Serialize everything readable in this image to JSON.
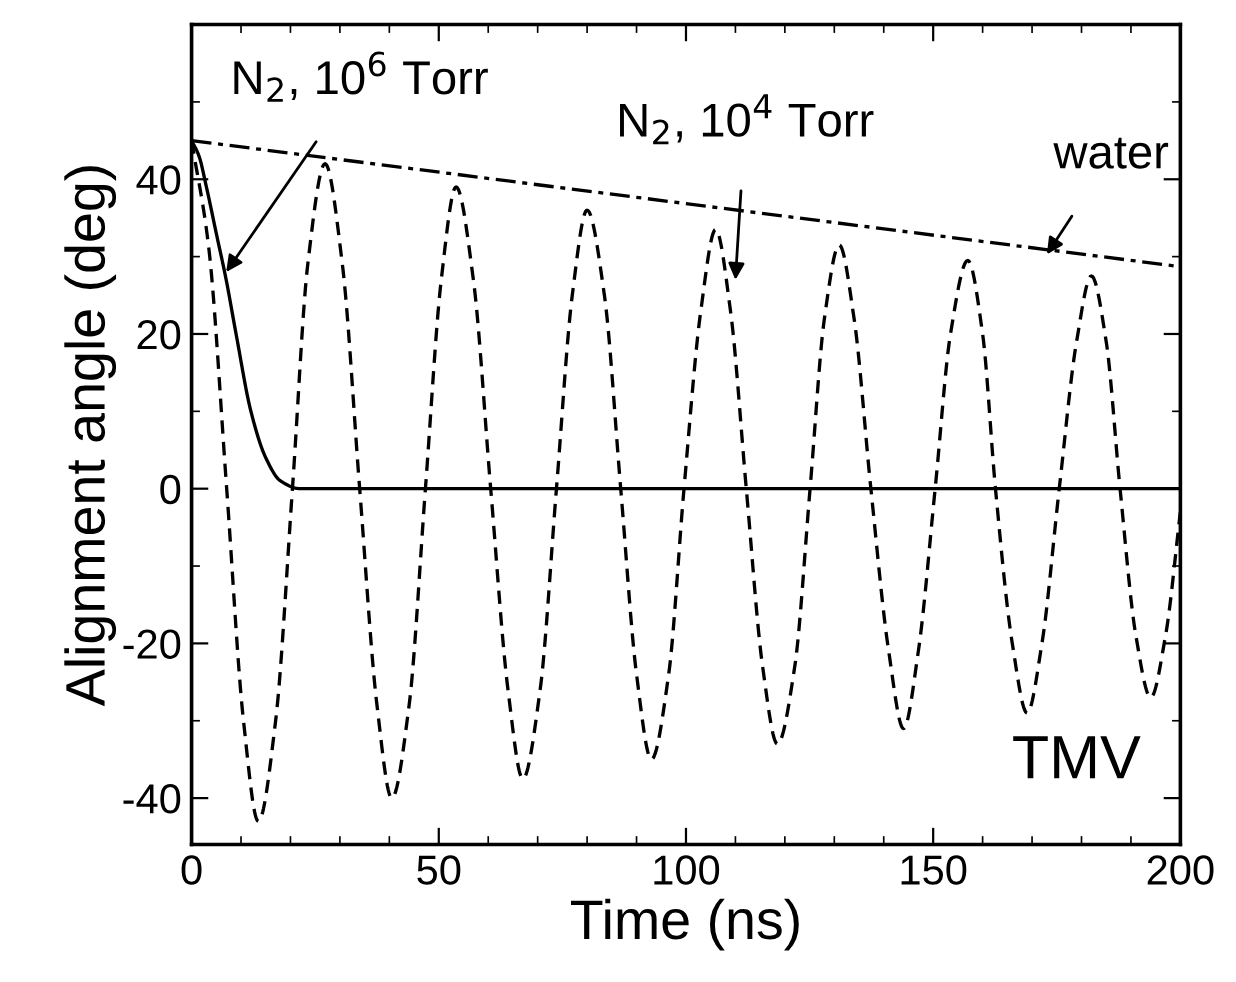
{
  "chart_data": {
    "type": "line",
    "xlabel": "Time (ns)",
    "ylabel": "Alignment angle (deg)",
    "xlim": [
      0,
      200
    ],
    "ylim": [
      -46,
      60
    ],
    "xticks": [
      0,
      50,
      100,
      150,
      200
    ],
    "yticks": [
      -40,
      -20,
      0,
      20,
      40
    ],
    "grid": false,
    "legend": false,
    "marker": "none",
    "series": [
      {
        "color": "#000000",
        "line_style": "dashed",
        "x": [
          0,
          3.5,
          7.1,
          10.5,
          13.5,
          17,
          20.4,
          23.5,
          27,
          30.5,
          34,
          37.5,
          40.5,
          44,
          47.3,
          50.5,
          53.5,
          57,
          60.5,
          64,
          67,
          70.5,
          73.8,
          77,
          80,
          83.5,
          86.8,
          90,
          93,
          96.5,
          99.6,
          103,
          106,
          109,
          112.2,
          115.5,
          118.5,
          122,
          125.1,
          128,
          131,
          134,
          137.4,
          141,
          144,
          147,
          150.4,
          153.5,
          157,
          160,
          162.6,
          166,
          169,
          172,
          175.5,
          179,
          182,
          185,
          187.8,
          191,
          194,
          197,
          200
        ],
        "values": [
          45,
          31,
          0,
          -30,
          -43,
          -30,
          0,
          29,
          42,
          29,
          0,
          -28,
          -40,
          -28,
          0,
          27,
          39,
          27,
          0,
          -26,
          -37.5,
          -26,
          0,
          25,
          36,
          25,
          0,
          -24,
          -35,
          -24,
          0,
          23,
          33.5,
          23,
          0,
          -23,
          -33,
          -23,
          0,
          22,
          31.5,
          22,
          0,
          -21,
          -31,
          -21,
          0,
          20,
          29.5,
          20,
          0,
          -20,
          -29,
          -20,
          0,
          19,
          27.5,
          19,
          0,
          -19,
          -27,
          -19,
          -3
        ]
      },
      {
        "color": "#000000",
        "line_style": "solid",
        "x": [
          0,
          1.5,
          3,
          5,
          7,
          9,
          12,
          15,
          18,
          22,
          30,
          200
        ],
        "values": [
          45,
          43,
          39,
          33,
          27,
          20,
          10,
          4,
          1,
          0,
          0,
          0
        ]
      },
      {
        "color": "#000000",
        "line_style": "dashdot",
        "x": [
          0,
          200
        ],
        "values": [
          45,
          28.7
        ]
      }
    ],
    "annotations": [
      {
        "text": "N$_{2}$, 10$^{6}$ Torr",
        "x": 7,
        "y": 28
      },
      {
        "text": "N$_{2}$, 10$^{4}$ Torr",
        "x": 110,
        "y": 27
      },
      {
        "text": "water",
        "x": 173,
        "y": 30.3
      },
      "TMV"
    ]
  }
}
